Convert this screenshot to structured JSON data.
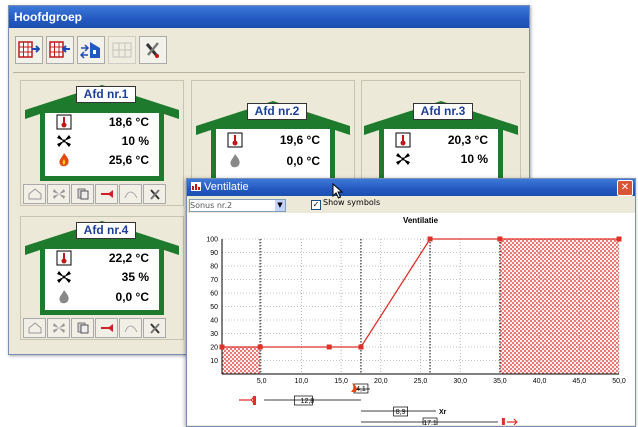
{
  "main_window": {
    "title": "Hoofdgroep",
    "toolbar_icons": [
      "grid-add-icon",
      "grid-remove-icon",
      "house-arrows-icon",
      "grid-disabled-icon",
      "tools-icon"
    ]
  },
  "departments": [
    {
      "label": "Afd nr.1",
      "values": [
        "18,6 °C",
        "10 %",
        "25,6 °C"
      ],
      "icons": [
        "thermometer-icon",
        "fan-icon",
        "heater-icon"
      ]
    },
    {
      "label": "Afd nr.2",
      "values": [
        "19,6 °C",
        "0,0 °C"
      ],
      "icons": [
        "thermometer-icon",
        "heater-off-icon"
      ]
    },
    {
      "label": "Afd nr.3",
      "values": [
        "20,3 °C",
        "10 %"
      ],
      "icons": [
        "thermometer-icon",
        "fan-icon"
      ]
    },
    {
      "label": "Afd nr.4",
      "values": [
        "22,2 °C",
        "35 %",
        "0,0 °C"
      ],
      "icons": [
        "thermometer-icon",
        "fan-icon",
        "heater-off-icon"
      ]
    }
  ],
  "chart_window": {
    "title": "Ventilatie",
    "select_value": "Sonus nr.2",
    "show_symbols_label": "Show symbols",
    "show_symbols_checked": true
  },
  "chart_data": {
    "type": "line",
    "title": "Ventilatie",
    "xlim": [
      0,
      50
    ],
    "ylim": [
      0,
      100
    ],
    "x_ticks": [
      "5,0",
      "10,0",
      "15,0",
      "20,0",
      "25,0",
      "30,0",
      "35,0",
      "40,0",
      "45,0",
      "50,0"
    ],
    "y_ticks": [
      "10",
      "20",
      "30",
      "40",
      "50",
      "60",
      "70",
      "80",
      "90",
      "100"
    ],
    "series": [
      {
        "points": [
          [
            0,
            20
          ],
          [
            4.8,
            20
          ],
          [
            13.5,
            20
          ],
          [
            17.5,
            20
          ],
          [
            26.2,
            100
          ],
          [
            35,
            100
          ],
          [
            50,
            100
          ]
        ]
      }
    ],
    "markers": [
      [
        0,
        20
      ],
      [
        4.8,
        20
      ],
      [
        13.5,
        20
      ],
      [
        17.5,
        20
      ],
      [
        26.2,
        100
      ],
      [
        35,
        100
      ],
      [
        50,
        100
      ]
    ],
    "hatched_regions": [
      [
        0,
        4.8
      ],
      [
        35,
        50
      ]
    ],
    "color": "#e0302a",
    "annotations": [
      {
        "text": "4,1",
        "x": 17.5,
        "icon": "flame-icon"
      },
      {
        "text": "12,8",
        "x": 10.5,
        "icon": "heater-icon"
      },
      {
        "text": "8,9",
        "x": 22.5,
        "icon": "xt-icon"
      },
      {
        "text": "17,1",
        "x": 26.2,
        "icon": "fan-icon"
      }
    ],
    "annotation_extra": [
      "Xr"
    ]
  }
}
